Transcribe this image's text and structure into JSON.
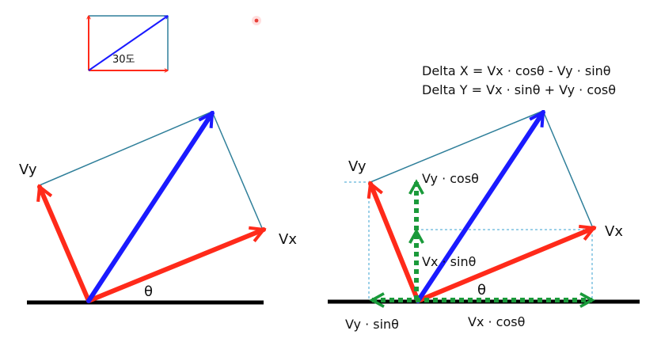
{
  "diagram": {
    "inset_angle_label": "30도",
    "formulas": {
      "delta_x": "Delta X = Vx · cosθ - Vy · sinθ",
      "delta_y": "Delta Y = Vx · sinθ + Vy · cosθ"
    },
    "left_figure": {
      "vy_label": "Vy",
      "vx_label": "Vx",
      "theta_label": "θ"
    },
    "right_figure": {
      "vy_label": "Vy",
      "vx_label": "Vx",
      "theta_label": "θ",
      "vy_cos_label": "Vy · cosθ",
      "vx_sin_label": "Vx · sinθ",
      "vy_sin_label": "Vy · sinθ",
      "vx_cos_label": "Vx · cosθ"
    },
    "colors": {
      "vector_x": "#ff2a1a",
      "vector_y": "#ff2a1a",
      "resultant": "#1a1aff",
      "outline": "#2f7f9a",
      "component": "#1a9a3a",
      "guide": "#3aa0d0",
      "ground": "#000000"
    }
  }
}
